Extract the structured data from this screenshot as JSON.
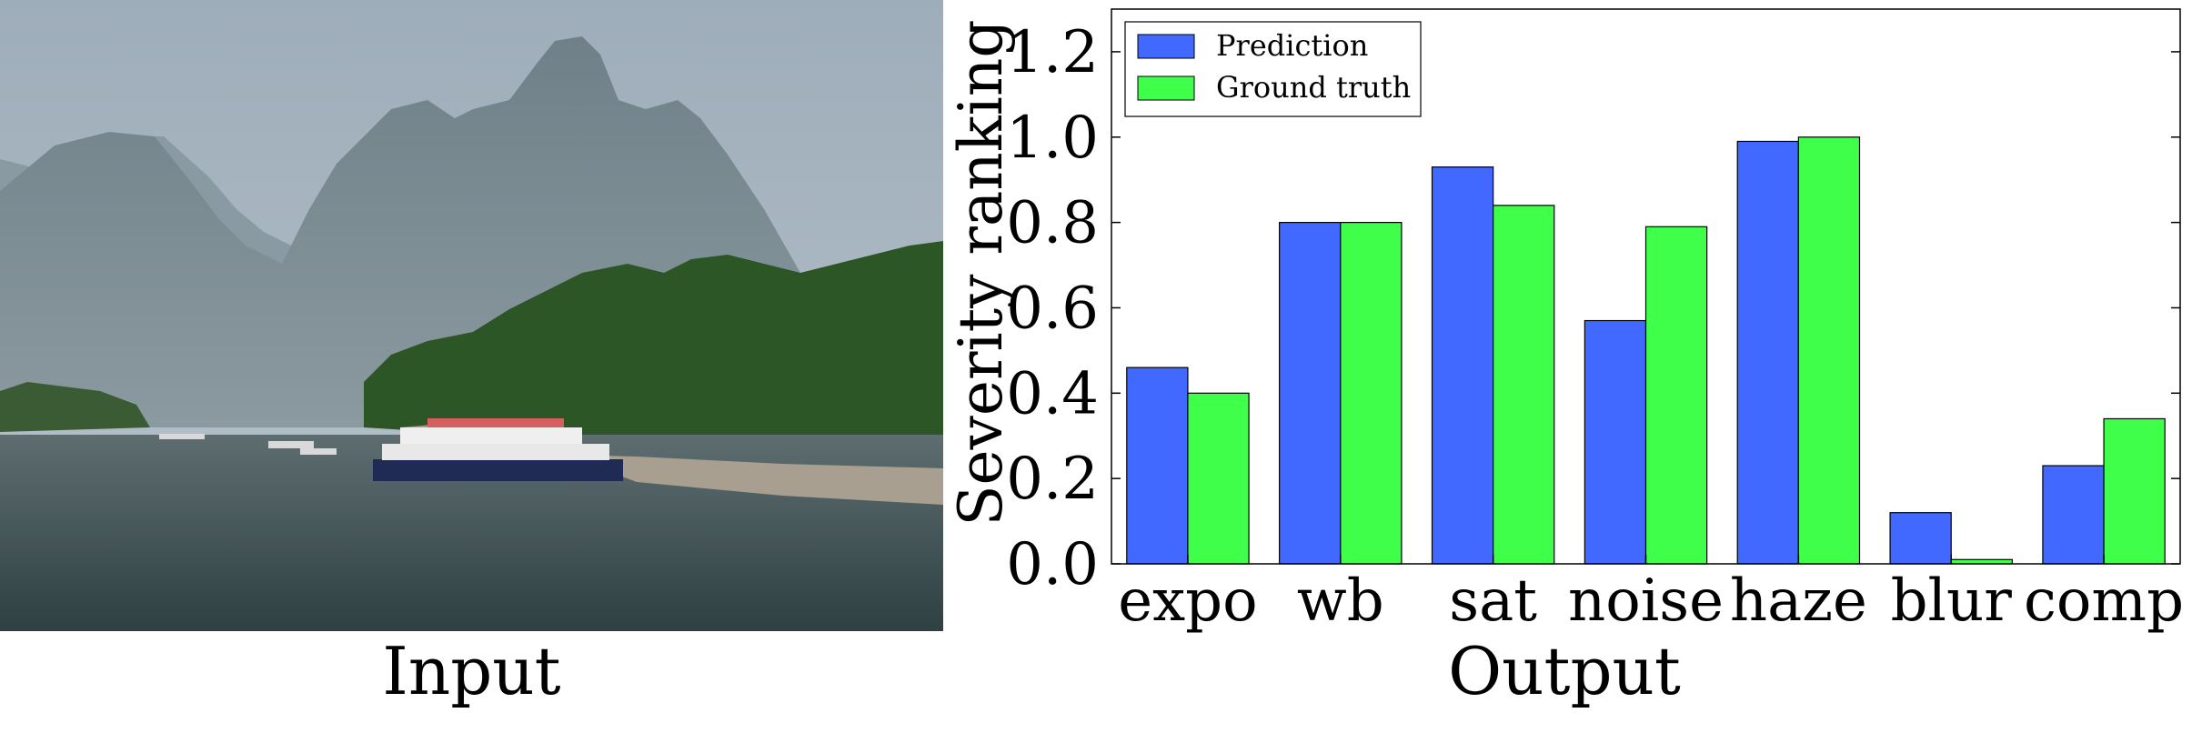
{
  "input_caption": "Input",
  "output_caption": "Output",
  "photo": {
    "description_icon": "landscape-photo",
    "sky_color": "#a9b7c3",
    "mountain_color": "#7d8f98",
    "foliage_color": "#2f5a26",
    "water_color": "#3e5054"
  },
  "chart_data": {
    "type": "bar",
    "categories": [
      "expo",
      "wb",
      "sat",
      "noise",
      "haze",
      "blur",
      "comp"
    ],
    "series": [
      {
        "name": "Prediction",
        "color": "#4169ff",
        "values": [
          0.46,
          0.8,
          0.93,
          0.57,
          0.99,
          0.12,
          0.23
        ]
      },
      {
        "name": "Ground truth",
        "color": "#40ff4a",
        "values": [
          0.4,
          0.8,
          0.84,
          0.79,
          1.0,
          0.01,
          0.34
        ]
      }
    ],
    "ylabel": "Severity ranking",
    "xlabel": "",
    "ylim": [
      0,
      1.3
    ],
    "yticks": [
      "0.0",
      "0.2",
      "0.4",
      "0.6",
      "0.8",
      "1.0",
      "1.2"
    ],
    "ytick_values": [
      0,
      0.2,
      0.4,
      0.6,
      0.8,
      1.0,
      1.2
    ],
    "legend_position": "top-left",
    "grid": false
  }
}
